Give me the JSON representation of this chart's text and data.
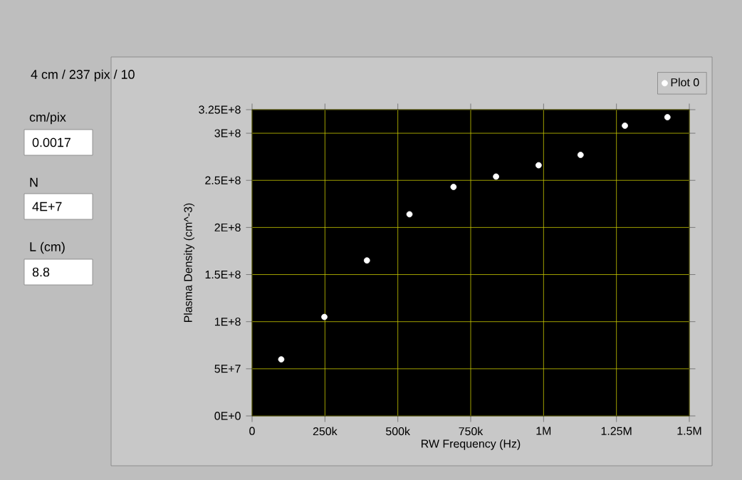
{
  "chart_data": {
    "type": "scatter",
    "title": "4 cm / 237 pix / 10",
    "xlabel": "RW Frequency (Hz)",
    "ylabel": "Plasma Density (cm^-3)",
    "x": [
      100000,
      248000,
      394000,
      540000,
      691000,
      837000,
      983000,
      1127000,
      1279000,
      1425000
    ],
    "series": [
      {
        "name": "Plot 0",
        "color": "#ffffff",
        "values": [
          60000000,
          105000000,
          165000000,
          214000000,
          243000000,
          254000000,
          266000000,
          277000000,
          308000000,
          317000000
        ]
      }
    ],
    "xlim": [
      0,
      1500000
    ],
    "xticks": [
      0,
      {
        "value": 250000,
        "label": "250k"
      },
      {
        "value": 500000,
        "label": "500k"
      },
      {
        "value": 750000,
        "label": "750k"
      },
      {
        "value": 1000000,
        "label": "1M"
      },
      {
        "value": 1250000,
        "label": "1.25M"
      },
      {
        "value": 1500000,
        "label": "1.5M"
      }
    ],
    "ylim": [
      0,
      325000000
    ],
    "yticks": [
      {
        "value": 0,
        "label": "0E+0"
      },
      {
        "value": 50000000,
        "label": "5E+7"
      },
      {
        "value": 100000000,
        "label": "1E+8"
      },
      {
        "value": 150000000,
        "label": "1.5E+8"
      },
      {
        "value": 200000000,
        "label": "2E+8"
      },
      {
        "value": 250000000,
        "label": "2.5E+8"
      },
      {
        "value": 300000000,
        "label": "3E+8"
      },
      {
        "value": 325000000,
        "label": "3.25E+8"
      }
    ],
    "grid": true,
    "legend": "top right",
    "annotations": [
      "cm/pix",
      "0.0017",
      "N",
      "4E+7",
      "L (cm)",
      "8.8"
    ]
  }
}
